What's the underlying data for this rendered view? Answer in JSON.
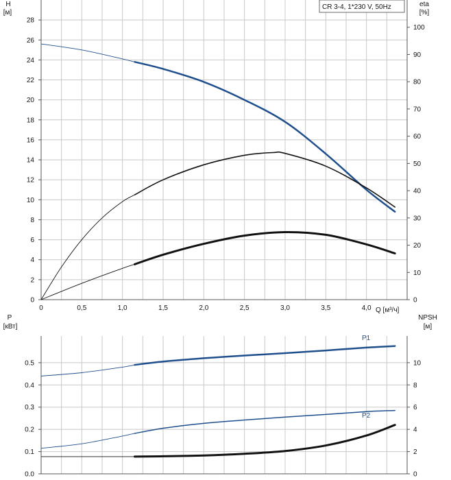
{
  "legend_box": {
    "text": "CR 3-4, 1*230 V, 50Hz"
  },
  "colors": {
    "grid": "#c8c8c8",
    "axis": "#555555",
    "blue": "#1f4e8c",
    "black": "#111111",
    "text": "#111111"
  },
  "chart_data": [
    {
      "type": "line",
      "title": "CR 3-4, 1*230 V, 50Hz",
      "x": {
        "label": "Q [м³/ч]",
        "range": [
          0,
          4.5
        ],
        "ticks": [
          "0",
          "0,5",
          "1,0",
          "1,5",
          "2,0",
          "2,5",
          "3,0",
          "3,5",
          "4,0"
        ],
        "tick_values": [
          0,
          0.5,
          1.0,
          1.5,
          2.0,
          2.5,
          3.0,
          3.5,
          4.0
        ]
      },
      "y_left": {
        "label_line1": "H",
        "label_line2": "[м]",
        "range": [
          0,
          30
        ],
        "ticks": [
          "0",
          "2",
          "4",
          "6",
          "8",
          "10",
          "12",
          "14",
          "16",
          "18",
          "20",
          "22",
          "24",
          "26",
          "28"
        ],
        "tick_values": [
          0,
          2,
          4,
          6,
          8,
          10,
          12,
          14,
          16,
          18,
          20,
          22,
          24,
          26,
          28
        ]
      },
      "y_right": {
        "label_line1": "eta",
        "label_line2": "[%]",
        "range": [
          0,
          110
        ],
        "ticks": [
          "0",
          "10",
          "20",
          "30",
          "40",
          "50",
          "60",
          "70",
          "80",
          "90",
          "100"
        ],
        "tick_values": [
          0,
          10,
          20,
          30,
          40,
          50,
          60,
          70,
          80,
          90,
          100
        ]
      },
      "series": [
        {
          "name": "H",
          "axis": "left",
          "color": "blue",
          "width": 2.5,
          "thin_until": 1.15,
          "points": [
            [
              0,
              25.6
            ],
            [
              0.5,
              25.0
            ],
            [
              1.0,
              24.1
            ],
            [
              1.15,
              23.8
            ],
            [
              1.5,
              23.1
            ],
            [
              2.0,
              21.8
            ],
            [
              2.5,
              20.0
            ],
            [
              3.0,
              17.8
            ],
            [
              3.5,
              14.6
            ],
            [
              4.0,
              11.0
            ],
            [
              4.35,
              8.8
            ]
          ]
        },
        {
          "name": "eta",
          "axis": "right",
          "color": "black",
          "width": 1.6,
          "thin_until": 1.15,
          "points": [
            [
              0,
              0
            ],
            [
              0.25,
              12
            ],
            [
              0.5,
              22
            ],
            [
              0.75,
              30
            ],
            [
              1.0,
              36
            ],
            [
              1.15,
              38.5
            ],
            [
              1.5,
              44
            ],
            [
              2.0,
              49.5
            ],
            [
              2.5,
              53
            ],
            [
              2.85,
              54
            ],
            [
              3.0,
              53.7
            ],
            [
              3.5,
              49
            ],
            [
              4.0,
              41
            ],
            [
              4.35,
              34
            ]
          ]
        },
        {
          "name": "eta_p",
          "axis": "right",
          "color": "black",
          "width": 3,
          "thin_until": 1.15,
          "points": [
            [
              0,
              0
            ],
            [
              0.5,
              6
            ],
            [
              1.0,
              11.5
            ],
            [
              1.15,
              13
            ],
            [
              1.5,
              16.5
            ],
            [
              2.0,
              20.5
            ],
            [
              2.5,
              23.5
            ],
            [
              3.0,
              24.8
            ],
            [
              3.5,
              23.8
            ],
            [
              4.0,
              20.3
            ],
            [
              4.35,
              17
            ]
          ]
        }
      ]
    },
    {
      "type": "line",
      "x": {
        "range": [
          0,
          4.5
        ]
      },
      "y_left": {
        "label_line1": "P",
        "label_line2": "[кВт]",
        "range": [
          0,
          0.62
        ],
        "ticks": [
          "0.0",
          "0.1",
          "0.2",
          "0.3",
          "0.4",
          "0.5"
        ],
        "tick_values": [
          0,
          0.1,
          0.2,
          0.3,
          0.4,
          0.5
        ]
      },
      "y_right": {
        "label_line1": "NPSH",
        "label_line2": "[м]",
        "range": [
          0,
          12.4
        ],
        "ticks": [
          "0",
          "2",
          "4",
          "6",
          "8",
          "10"
        ],
        "tick_values": [
          0,
          2,
          4,
          6,
          8,
          10
        ]
      },
      "series": [
        {
          "name": "P1",
          "axis": "left",
          "color": "blue",
          "width": 2.5,
          "thin_until": 1.15,
          "label": "P1",
          "points": [
            [
              0,
              0.44
            ],
            [
              0.5,
              0.455
            ],
            [
              1.0,
              0.48
            ],
            [
              1.15,
              0.49
            ],
            [
              1.5,
              0.505
            ],
            [
              2.0,
              0.52
            ],
            [
              2.5,
              0.532
            ],
            [
              3.0,
              0.543
            ],
            [
              3.5,
              0.555
            ],
            [
              4.0,
              0.568
            ],
            [
              4.35,
              0.575
            ]
          ]
        },
        {
          "name": "P2",
          "axis": "left",
          "color": "blue",
          "width": 1.5,
          "thin_until": 1.15,
          "label": "P2",
          "points": [
            [
              0,
              0.115
            ],
            [
              0.5,
              0.135
            ],
            [
              1.0,
              0.17
            ],
            [
              1.15,
              0.182
            ],
            [
              1.5,
              0.205
            ],
            [
              2.0,
              0.227
            ],
            [
              2.5,
              0.242
            ],
            [
              3.0,
              0.255
            ],
            [
              3.5,
              0.267
            ],
            [
              4.0,
              0.28
            ],
            [
              4.35,
              0.285
            ]
          ]
        },
        {
          "name": "NPSH",
          "axis": "right",
          "color": "black",
          "width": 3,
          "thin_until": 1.15,
          "points": [
            [
              0,
              1.55
            ],
            [
              0.5,
              1.55
            ],
            [
              1.15,
              1.55
            ],
            [
              1.5,
              1.58
            ],
            [
              2.0,
              1.65
            ],
            [
              2.5,
              1.8
            ],
            [
              3.0,
              2.05
            ],
            [
              3.5,
              2.55
            ],
            [
              4.0,
              3.45
            ],
            [
              4.35,
              4.4
            ]
          ]
        }
      ]
    }
  ]
}
